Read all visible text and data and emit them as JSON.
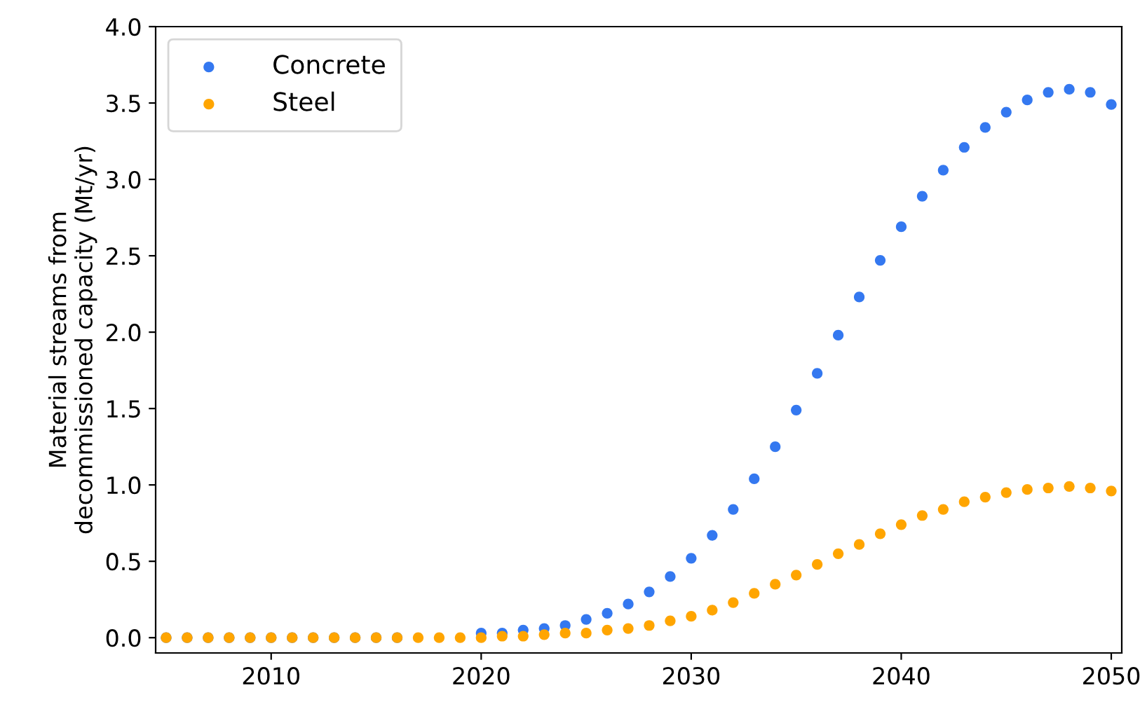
{
  "chart_data": {
    "type": "scatter",
    "ylabel": "Material streams from\ndecommissioned capacity (Mt/yr)",
    "x": [
      2005,
      2006,
      2007,
      2008,
      2009,
      2010,
      2011,
      2012,
      2013,
      2014,
      2015,
      2016,
      2017,
      2018,
      2019,
      2020,
      2021,
      2022,
      2023,
      2024,
      2025,
      2026,
      2027,
      2028,
      2029,
      2030,
      2031,
      2032,
      2033,
      2034,
      2035,
      2036,
      2037,
      2038,
      2039,
      2040,
      2041,
      2042,
      2043,
      2044,
      2045,
      2046,
      2047,
      2048,
      2049,
      2050
    ],
    "series": [
      {
        "name": "Concrete",
        "color": "#3478f0",
        "values": [
          0,
          0,
          0,
          0,
          0,
          0,
          0,
          0,
          0,
          0,
          0,
          0,
          null,
          null,
          null,
          0.03,
          0.03,
          0.05,
          0.06,
          0.08,
          0.12,
          0.16,
          0.22,
          0.3,
          0.4,
          0.52,
          0.67,
          0.84,
          1.04,
          1.25,
          1.49,
          1.73,
          1.98,
          2.23,
          2.47,
          2.69,
          2.89,
          3.06,
          3.21,
          3.34,
          3.44,
          3.52,
          3.57,
          3.59,
          3.57,
          3.49
        ]
      },
      {
        "name": "Steel",
        "color": "#ffa500",
        "values": [
          0,
          0,
          0,
          0,
          0,
          0,
          0,
          0,
          0,
          0,
          0,
          0,
          0,
          0,
          0,
          0,
          0.01,
          0.01,
          0.02,
          0.03,
          0.03,
          0.05,
          0.06,
          0.08,
          0.11,
          0.14,
          0.18,
          0.23,
          0.29,
          0.35,
          0.41,
          0.48,
          0.55,
          0.61,
          0.68,
          0.74,
          0.8,
          0.84,
          0.89,
          0.92,
          0.95,
          0.97,
          0.98,
          0.99,
          0.98,
          0.96
        ]
      }
    ],
    "xlim": [
      2004.5,
      2050.5
    ],
    "xticks": [
      2010,
      2020,
      2030,
      2040,
      2050
    ],
    "ylim": [
      -0.1,
      4.0
    ],
    "yticks": [
      {
        "value": 0,
        "label": "0.0"
      },
      0.5,
      {
        "value": 1,
        "label": "1.0"
      },
      1.5,
      {
        "value": 2,
        "label": "2.0"
      },
      2.5,
      {
        "value": 3,
        "label": "3.0"
      },
      3.5,
      {
        "value": 4,
        "label": "4.0"
      }
    ],
    "marker": "circle",
    "legend": "top left",
    "grid": false
  }
}
